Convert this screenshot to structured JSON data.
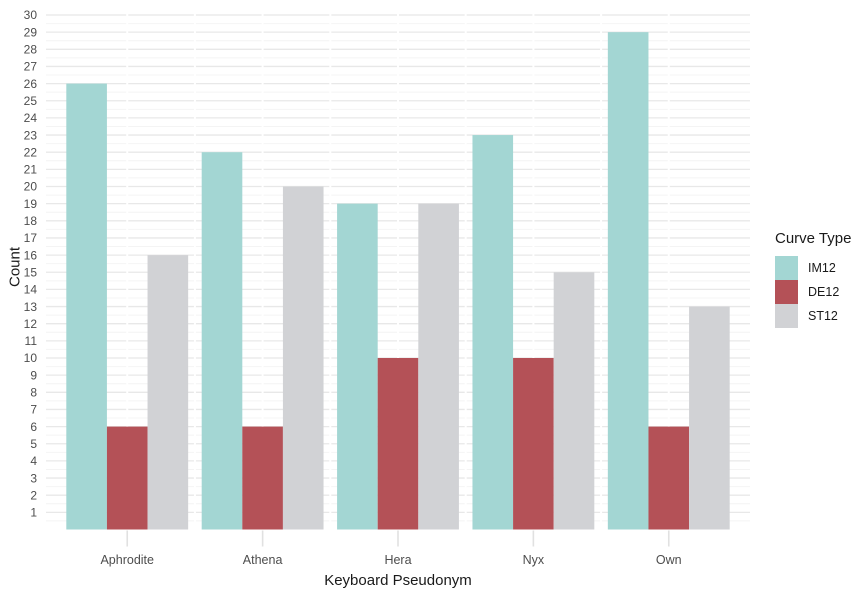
{
  "chart_data": {
    "type": "bar",
    "grouping": "dodged",
    "xlabel": "Keyboard Pseudonym",
    "ylabel": "Count",
    "categories": [
      "Aphrodite",
      "Athena",
      "Hera",
      "Nyx",
      "Own"
    ],
    "series": [
      {
        "name": "IM12",
        "color": "#a3d6d3",
        "values": [
          26,
          22,
          19,
          23,
          29
        ]
      },
      {
        "name": "DE12",
        "color": "#b45157",
        "values": [
          6,
          6,
          10,
          10,
          6
        ]
      },
      {
        "name": "ST12",
        "color": "#d1d2d5",
        "values": [
          16,
          20,
          19,
          15,
          13
        ]
      }
    ],
    "ylim": [
      0,
      30
    ],
    "yticks": [
      1,
      2,
      3,
      4,
      5,
      6,
      7,
      8,
      9,
      10,
      11,
      12,
      13,
      14,
      15,
      16,
      17,
      18,
      19,
      20,
      21,
      22,
      23,
      24,
      25,
      26,
      27,
      28,
      29,
      30
    ],
    "legend": {
      "title": "Curve Type",
      "position": "right"
    },
    "grid": {
      "horizontal": "major and minor gridlines",
      "vertical": "white overlay lines at band centers and boundaries"
    },
    "bar_width_fraction": 0.9
  },
  "style": {
    "background": "#ffffff",
    "grid_major": "#e8e8e8",
    "grid_minor": "#f4f4f4",
    "grid_vertical": "#ffffff",
    "axis_tick": "#e1e1e1",
    "axis_text": "#4d4d4d",
    "title_text": "#1a1a1a"
  }
}
